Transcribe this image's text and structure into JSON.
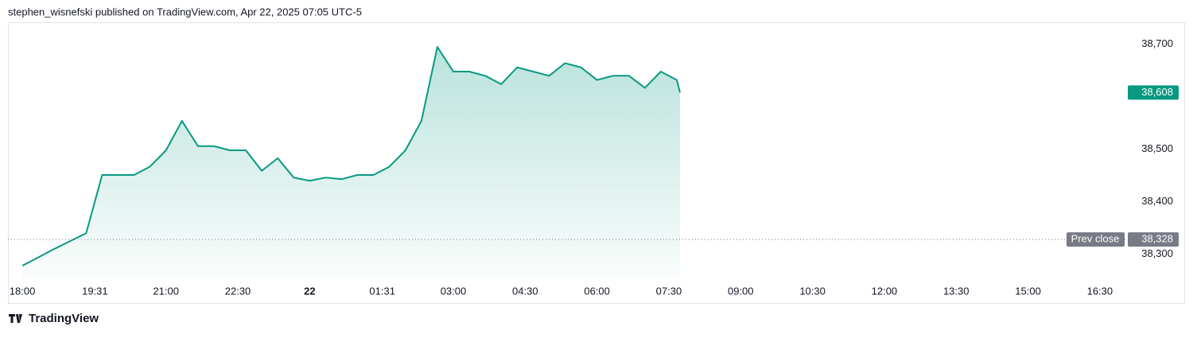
{
  "header": {
    "text": "stephen_wisnefski published on TradingView.com, Apr 22, 2025 07:05 UTC-5"
  },
  "footer": {
    "logo": "TradingView"
  },
  "chart_data": {
    "type": "area",
    "x": [
      "18:00",
      "18:20",
      "18:40",
      "19:00",
      "19:20",
      "19:40",
      "20:00",
      "20:20",
      "20:40",
      "21:00",
      "21:20",
      "21:40",
      "22:00",
      "22:20",
      "22:40",
      "23:00",
      "23:20",
      "23:40",
      "00:00",
      "00:20",
      "00:40",
      "01:00",
      "01:20",
      "01:40",
      "02:00",
      "02:20",
      "02:40",
      "03:00",
      "03:20",
      "03:40",
      "04:00",
      "04:20",
      "04:40",
      "05:00",
      "05:20",
      "05:40",
      "06:00",
      "06:20",
      "06:40",
      "07:00",
      "07:20",
      "07:40",
      "07:44"
    ],
    "series": [
      {
        "color": "#089981",
        "values": [
          38278,
          38294,
          38310,
          38325,
          38340,
          38451,
          38451,
          38451,
          38467,
          38498,
          38554,
          38506,
          38506,
          38498,
          38498,
          38459,
          38483,
          38446,
          38440,
          38446,
          38443,
          38451,
          38451,
          38467,
          38498,
          38554,
          38695,
          38648,
          38648,
          38640,
          38624,
          38656,
          38648,
          38640,
          38664,
          38656,
          38632,
          38640,
          38640,
          38617,
          38648,
          38632,
          38608
        ]
      }
    ],
    "xlim": [
      "17:42",
      "17:05"
    ],
    "xticks": [
      "18:00",
      "19:31",
      "21:00",
      "22:30",
      {
        "value": "00:00",
        "label": "22"
      },
      "01:31",
      "03:00",
      "04:30",
      "06:00",
      "07:30",
      "09:00",
      "10:30",
      "12:00",
      "13:30",
      "15:00",
      "16:30"
    ],
    "ylim": [
      38254,
      38742
    ],
    "yticks": [
      {
        "value": 38300,
        "label": "38,300"
      },
      {
        "value": 38400,
        "label": "38,400"
      },
      {
        "value": 38500,
        "label": "38,500"
      },
      {
        "value": 38700,
        "label": "38,700"
      }
    ],
    "last_price": {
      "value": 38608,
      "label": "38,608"
    },
    "prev_close_label": "Prev close",
    "prev_close": {
      "value": 38328,
      "label": "38,328"
    },
    "prev_close_color": "#787b86"
  }
}
